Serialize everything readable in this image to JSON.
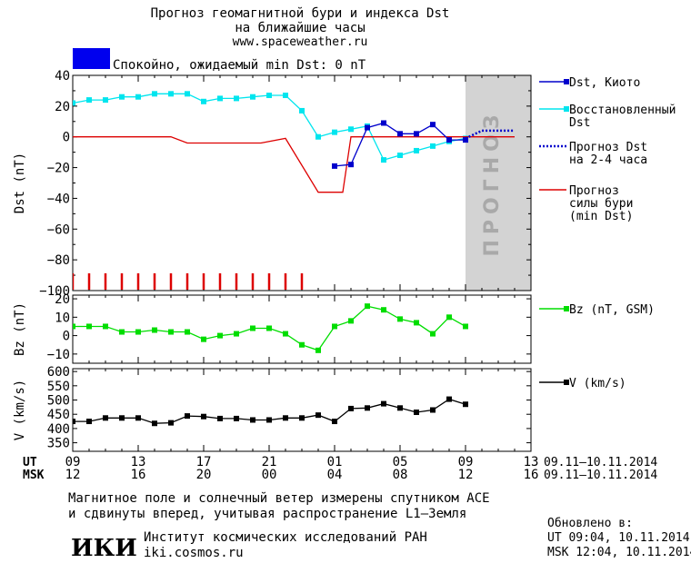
{
  "header": {
    "title": "Прогноз геомагнитной бури и индекса Dst",
    "subtitle": "на ближайшие часы",
    "url": "www.spaceweather.ru"
  },
  "status": {
    "text": "Спокойно, ожидаемый min Dst: 0 nT",
    "color": "#0000ee"
  },
  "colors": {
    "dst_kyoto": "#0000cc",
    "dst_restored": "#00e5ee",
    "dst_forecast": "#0000cc",
    "storm_forecast": "#dd0000",
    "forecast_zone": "#d3d3d3",
    "bz": "#00dd00",
    "v": "#000000"
  },
  "forecast_zone_label": "ПРОГНОЗ",
  "x_axis": {
    "ut_label": "UT",
    "msk_label": "MSK",
    "ut_ticks": [
      "09",
      "13",
      "17",
      "21",
      "01",
      "05",
      "09",
      "13"
    ],
    "msk_ticks": [
      "12",
      "16",
      "20",
      "00",
      "04",
      "08",
      "12",
      "16"
    ],
    "ut_range": "09.11–10.11.2014",
    "msk_range": "09.11–10.11.2014"
  },
  "chart_data": [
    {
      "type": "line",
      "ylabel": "Dst (nT)",
      "xlim": [
        0,
        28
      ],
      "ylim": [
        -100,
        40
      ],
      "y_ticks": [
        40,
        20,
        0,
        -20,
        -40,
        -60,
        -80,
        -100
      ],
      "forecast_start_x": 24,
      "legend": [
        "Dst, Киото",
        "Восстановленный Dst",
        "Прогноз Dst на 2-4 часа",
        "Прогноз силы бури (min Dst)"
      ],
      "series": [
        {
          "name": "Dst, Киото",
          "x": [
            16,
            17,
            18,
            19,
            20,
            21,
            22,
            23,
            24
          ],
          "y": [
            -19,
            -18,
            6,
            9,
            2,
            2,
            8,
            -2,
            -2
          ]
        },
        {
          "name": "Восстановленный Dst",
          "x": [
            0,
            1,
            2,
            3,
            4,
            5,
            6,
            7,
            8,
            9,
            10,
            11,
            12,
            13,
            14,
            15,
            16,
            17,
            18,
            19,
            20,
            21,
            22,
            23,
            24
          ],
          "y": [
            22,
            24,
            24,
            26,
            26,
            28,
            28,
            28,
            23,
            25,
            25,
            26,
            27,
            27,
            17,
            0,
            3,
            5,
            7,
            -15,
            -12,
            -9,
            -6,
            -3,
            -1
          ]
        },
        {
          "name": "Прогноз Dst на 2-4 часа",
          "x": [
            24,
            25,
            26,
            27
          ],
          "y": [
            -1,
            4,
            4,
            4
          ]
        },
        {
          "name": "Прогноз силы бури (min Dst)",
          "x": [
            0,
            6,
            7,
            11,
            11.5,
            13,
            15,
            16,
            16.5,
            17,
            24,
            27
          ],
          "y": [
            0,
            0,
            -4,
            -4,
            -4,
            -1,
            -36,
            -36,
            -36,
            0,
            0,
            0
          ]
        }
      ],
      "annotations": {
        "red_ticks_x": [
          0,
          1,
          2,
          3,
          4,
          5,
          6,
          7,
          8,
          9,
          10,
          11,
          12,
          13,
          14
        ]
      }
    },
    {
      "type": "line",
      "ylabel": "Bz (nT)",
      "xlim": [
        0,
        28
      ],
      "ylim": [
        -15,
        22
      ],
      "y_ticks": [
        20,
        10,
        0,
        -10
      ],
      "legend": [
        "Bz (nT, GSM)"
      ],
      "series": [
        {
          "name": "Bz (nT, GSM)",
          "x": [
            0,
            1,
            2,
            3,
            4,
            5,
            6,
            7,
            8,
            9,
            10,
            11,
            12,
            13,
            14,
            15,
            16,
            17,
            18,
            19,
            20,
            21,
            22,
            23,
            24
          ],
          "y": [
            5,
            5,
            5,
            2,
            2,
            3,
            2,
            2,
            -2,
            0,
            1,
            4,
            4,
            1,
            -5,
            -8,
            5,
            8,
            16,
            14,
            9,
            7,
            1,
            10,
            5
          ]
        }
      ]
    },
    {
      "type": "line",
      "ylabel": "V (km/s)",
      "xlim": [
        0,
        28
      ],
      "ylim": [
        320,
        610
      ],
      "y_ticks": [
        600,
        550,
        500,
        450,
        400,
        350
      ],
      "legend": [
        "V (km/s)"
      ],
      "series": [
        {
          "name": "V (km/s)",
          "x": [
            0,
            1,
            2,
            3,
            4,
            5,
            6,
            7,
            8,
            9,
            10,
            11,
            12,
            13,
            14,
            15,
            16,
            17,
            18,
            19,
            20,
            21,
            22,
            23,
            24
          ],
          "y": [
            425,
            425,
            437,
            437,
            437,
            418,
            420,
            444,
            442,
            435,
            435,
            430,
            430,
            437,
            437,
            447,
            425,
            470,
            472,
            487,
            472,
            457,
            465,
            503,
            485
          ]
        }
      ]
    }
  ],
  "footer": {
    "note_line1": "Магнитное поле и солнечный ветер измерены спутником ACE",
    "note_line2": "и сдвинуты вперед, учитывая распространение L1–Земля",
    "logo_text": "ИКИ",
    "institute": "Институт космических исследований РАН",
    "institute_url": "iki.cosmos.ru",
    "updated_label": "Обновлено в:",
    "updated_ut": "UT  09:04, 10.11.2014",
    "updated_msk": "MSK 12:04, 10.11.2014"
  }
}
